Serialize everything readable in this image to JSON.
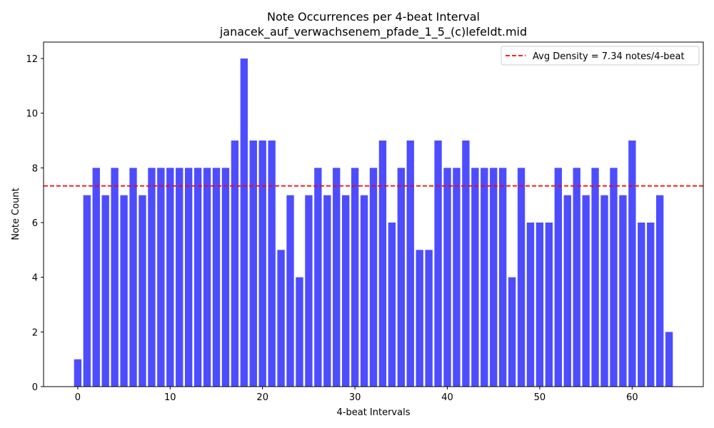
{
  "chart_data": {
    "type": "bar",
    "title": "Note Occurrences per 4-beat Interval",
    "subtitle": "janacek_auf_verwachsenem_pfade_1_5_(c)lefeldt.mid",
    "xlabel": "4-beat Intervals",
    "ylabel": "Note Count",
    "x": [
      0,
      1,
      2,
      3,
      4,
      5,
      6,
      7,
      8,
      9,
      10,
      11,
      12,
      13,
      14,
      15,
      16,
      17,
      18,
      19,
      20,
      21,
      22,
      23,
      24,
      25,
      26,
      27,
      28,
      29,
      30,
      31,
      32,
      33,
      34,
      35,
      36,
      37,
      38,
      39,
      40,
      41,
      42,
      43,
      44,
      45,
      46,
      47,
      48,
      49,
      50,
      51,
      52,
      53,
      54,
      55,
      56,
      57,
      58,
      59,
      60,
      61,
      62,
      63,
      64
    ],
    "values": [
      1,
      7,
      8,
      7,
      8,
      7,
      8,
      7,
      8,
      8,
      8,
      8,
      8,
      8,
      8,
      8,
      8,
      9,
      12,
      9,
      9,
      9,
      5,
      7,
      4,
      7,
      8,
      7,
      8,
      7,
      8,
      7,
      8,
      9,
      6,
      8,
      9,
      5,
      5,
      9,
      8,
      8,
      9,
      8,
      8,
      8,
      8,
      4,
      8,
      6,
      6,
      6,
      8,
      7,
      8,
      7,
      8,
      7,
      8,
      7,
      9,
      6,
      6,
      7,
      2
    ],
    "xlim": [
      -3.7,
      67.7
    ],
    "ylim": [
      0,
      12.6
    ],
    "xticks": [
      0,
      10,
      20,
      30,
      40,
      50,
      60
    ],
    "yticks": [
      0,
      2,
      4,
      6,
      8,
      10,
      12
    ],
    "bar_color": "#4d4dff",
    "average": {
      "value": 7.34,
      "label": "Avg Density = 7.34 notes/4-beat",
      "color": "#ff0000",
      "style": "dashed"
    },
    "legend_position": "top-right",
    "grid": false
  }
}
